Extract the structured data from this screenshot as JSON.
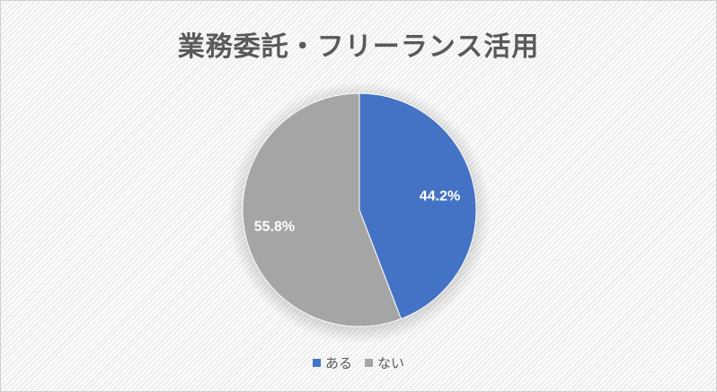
{
  "chart_data": {
    "type": "pie",
    "title": "業務委託・フリーランス活用",
    "categories": [
      "ある",
      "ない"
    ],
    "values": [
      44.2,
      55.8
    ],
    "labels": [
      "44.2%",
      "55.8%"
    ],
    "colors": [
      "#4472c4",
      "#a5a5a5"
    ],
    "legend_position": "bottom",
    "start_angle": "12 o'clock, clockwise"
  }
}
